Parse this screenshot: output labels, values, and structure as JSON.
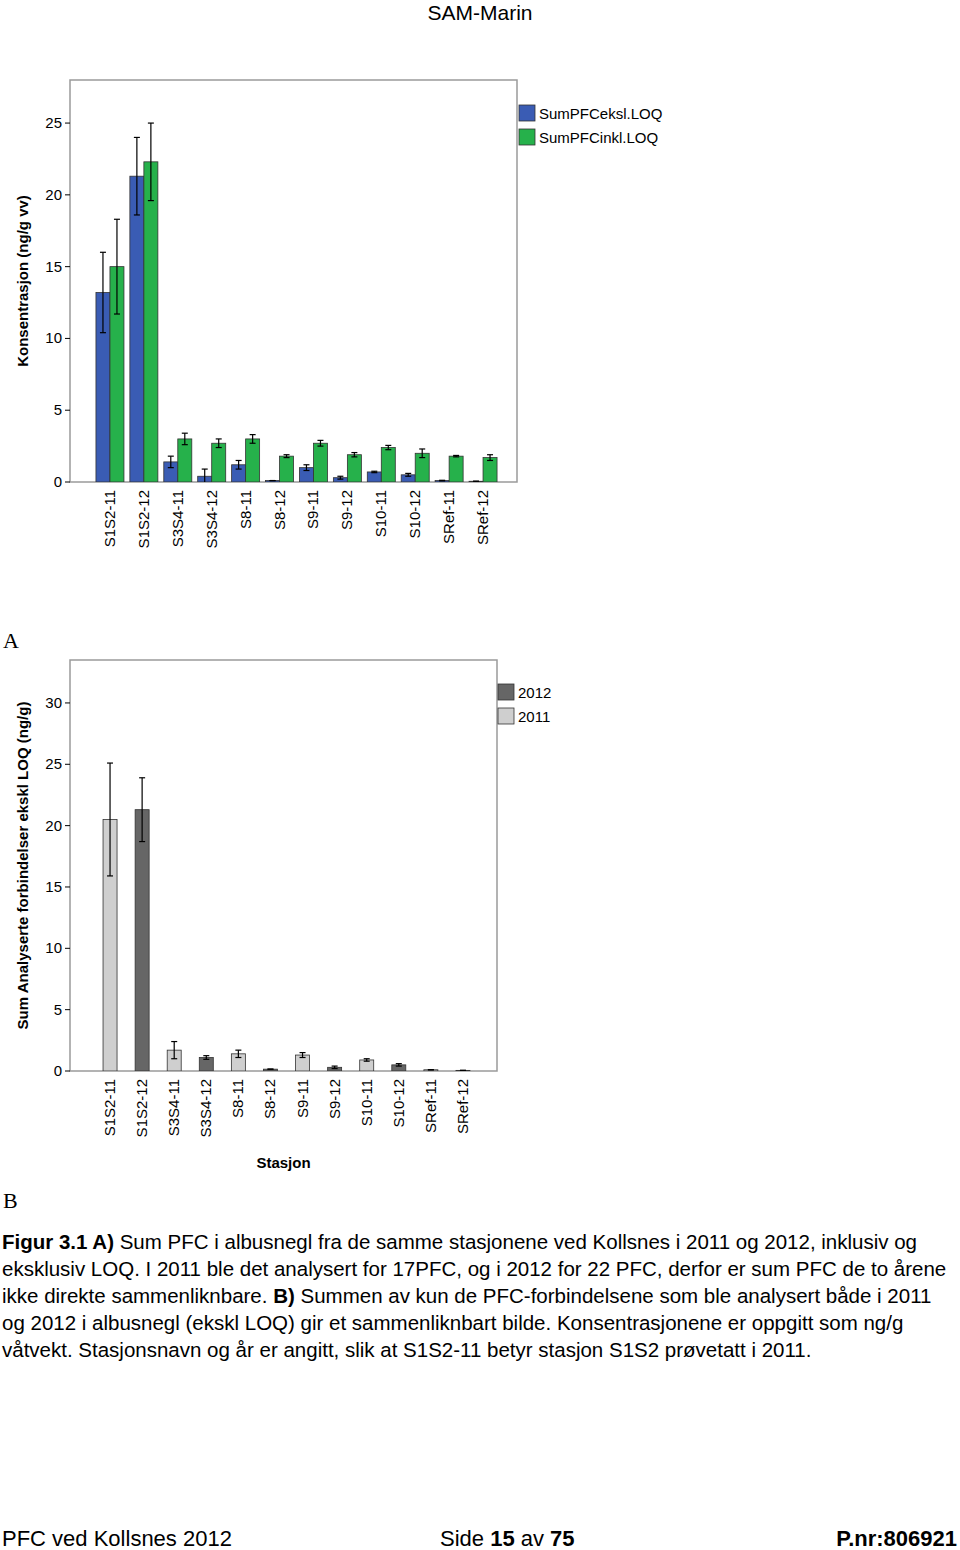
{
  "header": {
    "title": "SAM-Marin"
  },
  "chart_data": [
    {
      "type": "bar",
      "panel": "A",
      "ylabel": "Konsentrasjon (ng/g vv)",
      "categories": [
        "S1S2-11",
        "S1S2-12",
        "S3S4-11",
        "S3S4-12",
        "S8-11",
        "S8-12",
        "S9-11",
        "S9-12",
        "S10-11",
        "S10-12",
        "SRef-11",
        "SRef-12"
      ],
      "series": [
        {
          "name": "SumPFCeksl.LOQ",
          "color": "#3a5cb4",
          "values": [
            13.2,
            21.3,
            1.4,
            0.4,
            1.2,
            0.1,
            1.0,
            0.3,
            0.7,
            0.5,
            0.1,
            0.05
          ],
          "errors": [
            2.8,
            2.7,
            0.4,
            0.5,
            0.3,
            0.0,
            0.2,
            0.1,
            0.05,
            0.1,
            0.02,
            0.0
          ]
        },
        {
          "name": "SumPFCinkl.LOQ",
          "color": "#26b14b",
          "values": [
            15.0,
            22.3,
            3.0,
            2.7,
            3.0,
            1.8,
            2.7,
            1.9,
            2.4,
            2.0,
            1.8,
            1.7
          ],
          "errors": [
            3.3,
            2.7,
            0.4,
            0.3,
            0.3,
            0.1,
            0.2,
            0.15,
            0.15,
            0.3,
            0.05,
            0.2
          ]
        }
      ],
      "ylim": [
        0,
        28
      ],
      "yticks": [
        0,
        5,
        10,
        15,
        20,
        25
      ],
      "legend": "right",
      "grid": false
    },
    {
      "type": "bar",
      "panel": "B",
      "ylabel": "Sum Analyserte forbindelser ekskl LOQ (ng/g)",
      "xlabel": "Stasjon",
      "categories": [
        "S1S2-11",
        "S1S2-12",
        "S3S4-11",
        "S3S4-12",
        "S8-11",
        "S8-12",
        "S9-11",
        "S9-12",
        "S10-11",
        "S10-12",
        "SRef-11",
        "SRef-12"
      ],
      "series": [
        {
          "name": "2012",
          "color": "#666666",
          "values": [
            null,
            21.3,
            null,
            1.1,
            null,
            0.15,
            null,
            0.3,
            null,
            0.5,
            null,
            0.05
          ],
          "errors": [
            null,
            2.6,
            null,
            0.15,
            null,
            0.0,
            null,
            0.1,
            null,
            0.1,
            null,
            0.0
          ]
        },
        {
          "name": "2011",
          "color": "#cfcfcf",
          "values": [
            20.5,
            null,
            1.7,
            null,
            1.4,
            null,
            1.3,
            null,
            0.9,
            null,
            0.1,
            null
          ],
          "errors": [
            4.6,
            null,
            0.7,
            null,
            0.3,
            null,
            0.2,
            null,
            0.1,
            null,
            0.0,
            null
          ]
        }
      ],
      "ylim": [
        0,
        33.5
      ],
      "yticks": [
        0,
        5,
        10,
        15,
        20,
        25,
        30
      ],
      "legend": "right",
      "grid": false
    }
  ],
  "caption": [
    {
      "text": "Figur 3.1 A)",
      "bold": true
    },
    {
      "text": " Sum PFC i albusnegl fra de samme stasjonene ved Kollsnes i 2011 og 2012, inklusiv og eksklusiv LOQ. I 2011 ble det analysert for 17PFC, og i 2012 for 22 PFC, derfor er sum PFC de to årene ikke direkte sammenliknbare. ",
      "bold": false
    },
    {
      "text": "B)",
      "bold": true
    },
    {
      "text": " Summen av kun de PFC-forbindelsene som ble analysert både i 2011 og 2012 i albusnegl (ekskl LOQ) gir et sammenliknbart bilde. Konsentrasjonene er oppgitt som ng/g våtvekt. Stasjonsnavn og år er angitt, slik at S1S2-11 betyr stasjon S1S2 prøvetatt i 2011.",
      "bold": false
    }
  ],
  "footer": {
    "left": "PFC ved Kollsnes 2012",
    "center": [
      {
        "text": "Side ",
        "bold": false
      },
      {
        "text": "15",
        "bold": true
      },
      {
        "text": " av ",
        "bold": false
      },
      {
        "text": "75",
        "bold": true
      }
    ],
    "right": "P.nr:806921"
  }
}
